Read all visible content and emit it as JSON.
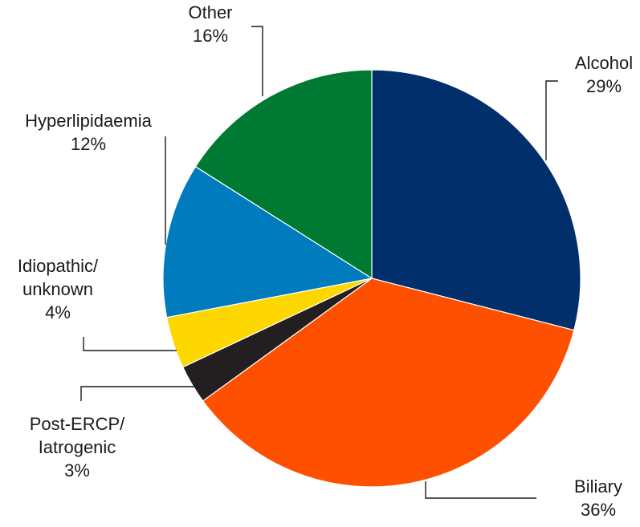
{
  "chart_data": {
    "type": "pie",
    "title": "",
    "start": "12 o'clock",
    "direction": "clockwise",
    "slices": [
      {
        "label_lines": [
          "Alcohol"
        ],
        "value_label": "29%",
        "value": 29,
        "color": "#002f6c"
      },
      {
        "label_lines": [
          "Biliary"
        ],
        "value_label": "36%",
        "value": 36,
        "color": "#ff5000"
      },
      {
        "label_lines": [
          "Post-ERCP/",
          "Iatrogenic"
        ],
        "value_label": "3%",
        "value": 3,
        "color": "#231f20"
      },
      {
        "label_lines": [
          "Idiopathic/",
          "unknown"
        ],
        "value_label": "4%",
        "value": 4,
        "color": "#ffd700"
      },
      {
        "label_lines": [
          "Hyperlipidaemia"
        ],
        "value_label": "12%",
        "value": 12,
        "color": "#007bbd"
      },
      {
        "label_lines": [
          "Other"
        ],
        "value_label": "16%",
        "value": 16,
        "color": "#007a33"
      }
    ]
  }
}
